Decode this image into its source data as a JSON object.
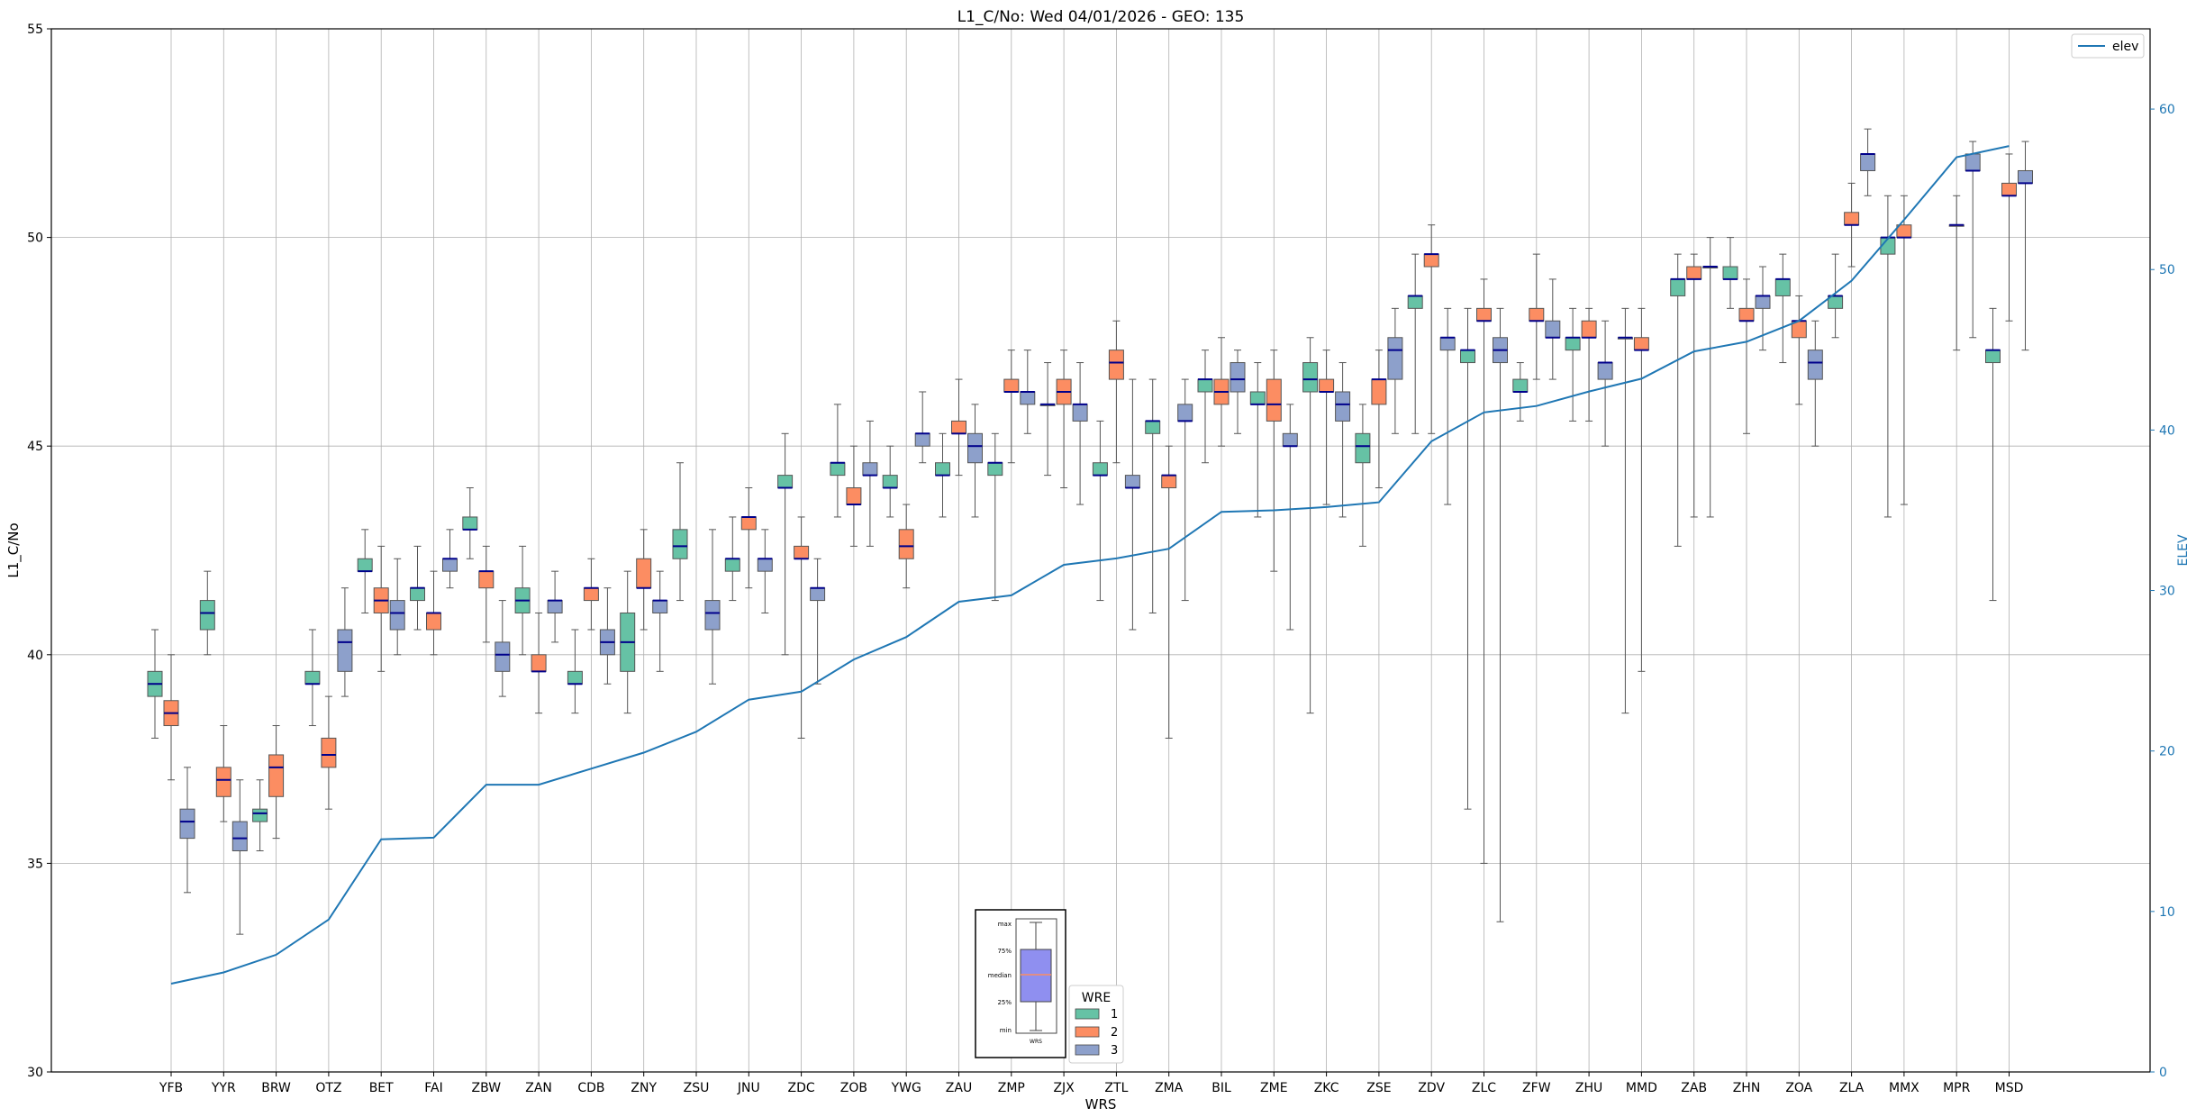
{
  "chart_data": {
    "type": "box",
    "title": "L1_C/No: Wed 04/01/2026 - GEO: 135",
    "xlabel": "WRS",
    "ylabel": "L1_C/No",
    "y2label": "ELEV",
    "ylim": [
      30,
      55
    ],
    "y2lim": [
      0,
      65
    ],
    "yticks": [
      30,
      35,
      40,
      45,
      50,
      55
    ],
    "y2ticks": [
      0,
      10,
      20,
      30,
      40,
      50,
      60
    ],
    "grid": true,
    "categories": [
      "YFB",
      "YYR",
      "BRW",
      "OTZ",
      "BET",
      "FAI",
      "ZBW",
      "ZAN",
      "CDB",
      "ZNY",
      "ZSU",
      "JNU",
      "ZDC",
      "ZOB",
      "YWG",
      "ZAU",
      "ZMP",
      "ZJX",
      "ZTL",
      "ZMA",
      "BIL",
      "ZME",
      "ZKC",
      "ZSE",
      "ZDV",
      "ZLC",
      "ZFW",
      "ZHU",
      "MMD",
      "ZAB",
      "ZHN",
      "ZOA",
      "ZLA",
      "MMX",
      "MPR",
      "MSD"
    ],
    "wre_colors": {
      "1": "#66c2a5",
      "2": "#fc8d62",
      "3": "#8da0cb"
    },
    "line_series": {
      "name": "elev",
      "color": "#1f77b4",
      "values": [
        5.5,
        6.2,
        7.3,
        9.5,
        14.5,
        14.6,
        17.9,
        17.9,
        18.9,
        19.9,
        21.2,
        23.2,
        23.7,
        25.7,
        27.1,
        29.3,
        29.7,
        31.6,
        32.0,
        32.6,
        34.9,
        35.0,
        35.2,
        35.5,
        39.3,
        41.1,
        41.5,
        42.4,
        43.2,
        44.9,
        45.5,
        46.8,
        49.3,
        53.1,
        57.0,
        57.7
      ]
    },
    "legend": {
      "title": "WRE",
      "entries": [
        "1",
        "2",
        "3"
      ],
      "line_label": "elev",
      "line_legend_position": "top-right",
      "wre_legend_position": "lower-center"
    },
    "inset": {
      "labels": [
        "max",
        "75%",
        "median",
        "25%",
        "min"
      ],
      "xlabel": "WRS"
    },
    "boxes": [
      {
        "cat": "YFB",
        "wre": 1,
        "min": 38.0,
        "q1": 39.0,
        "med": 39.3,
        "q3": 39.6,
        "max": 40.6
      },
      {
        "cat": "YFB",
        "wre": 2,
        "min": 37.0,
        "q1": 38.3,
        "med": 38.6,
        "q3": 38.9,
        "max": 40.0
      },
      {
        "cat": "YFB",
        "wre": 3,
        "min": 34.3,
        "q1": 35.6,
        "med": 36.0,
        "q3": 36.3,
        "max": 37.3
      },
      {
        "cat": "YYR",
        "wre": 1,
        "min": 40.0,
        "q1": 40.6,
        "med": 41.0,
        "q3": 41.3,
        "max": 42.0
      },
      {
        "cat": "YYR",
        "wre": 2,
        "min": 36.0,
        "q1": 36.6,
        "med": 37.0,
        "q3": 37.3,
        "max": 38.3
      },
      {
        "cat": "YYR",
        "wre": 3,
        "min": 33.3,
        "q1": 35.3,
        "med": 35.6,
        "q3": 36.0,
        "max": 37.0
      },
      {
        "cat": "BRW",
        "wre": 1,
        "min": 35.3,
        "q1": 36.0,
        "med": 36.2,
        "q3": 36.3,
        "max": 37.0
      },
      {
        "cat": "BRW",
        "wre": 2,
        "min": 35.6,
        "q1": 36.6,
        "med": 37.3,
        "q3": 37.6,
        "max": 38.3
      },
      {
        "cat": "OTZ",
        "wre": 1,
        "min": 38.3,
        "q1": 39.3,
        "med": 39.3,
        "q3": 39.6,
        "max": 40.6
      },
      {
        "cat": "OTZ",
        "wre": 2,
        "min": 36.3,
        "q1": 37.3,
        "med": 37.6,
        "q3": 38.0,
        "max": 39.0
      },
      {
        "cat": "OTZ",
        "wre": 3,
        "min": 39.0,
        "q1": 39.6,
        "med": 40.3,
        "q3": 40.6,
        "max": 41.6
      },
      {
        "cat": "BET",
        "wre": 1,
        "min": 41.0,
        "q1": 42.0,
        "med": 42.0,
        "q3": 42.3,
        "max": 43.0
      },
      {
        "cat": "BET",
        "wre": 2,
        "min": 39.6,
        "q1": 41.0,
        "med": 41.3,
        "q3": 41.6,
        "max": 42.6
      },
      {
        "cat": "BET",
        "wre": 3,
        "min": 40.0,
        "q1": 40.6,
        "med": 41.0,
        "q3": 41.3,
        "max": 42.3
      },
      {
        "cat": "FAI",
        "wre": 1,
        "min": 40.6,
        "q1": 41.3,
        "med": 41.6,
        "q3": 41.6,
        "max": 42.6
      },
      {
        "cat": "FAI",
        "wre": 2,
        "min": 40.0,
        "q1": 40.6,
        "med": 41.0,
        "q3": 41.0,
        "max": 42.0
      },
      {
        "cat": "FAI",
        "wre": 3,
        "min": 41.6,
        "q1": 42.0,
        "med": 42.3,
        "q3": 42.3,
        "max": 43.0
      },
      {
        "cat": "ZBW",
        "wre": 1,
        "min": 42.3,
        "q1": 43.0,
        "med": 43.0,
        "q3": 43.3,
        "max": 44.0
      },
      {
        "cat": "ZBW",
        "wre": 2,
        "min": 40.3,
        "q1": 41.6,
        "med": 42.0,
        "q3": 42.0,
        "max": 42.6
      },
      {
        "cat": "ZBW",
        "wre": 3,
        "min": 39.0,
        "q1": 39.6,
        "med": 40.0,
        "q3": 40.3,
        "max": 41.3
      },
      {
        "cat": "ZAN",
        "wre": 1,
        "min": 40.0,
        "q1": 41.0,
        "med": 41.3,
        "q3": 41.6,
        "max": 42.6
      },
      {
        "cat": "ZAN",
        "wre": 2,
        "min": 38.6,
        "q1": 39.6,
        "med": 39.6,
        "q3": 40.0,
        "max": 41.0
      },
      {
        "cat": "ZAN",
        "wre": 3,
        "min": 40.3,
        "q1": 41.0,
        "med": 41.3,
        "q3": 41.3,
        "max": 42.0
      },
      {
        "cat": "CDB",
        "wre": 1,
        "min": 38.6,
        "q1": 39.3,
        "med": 39.3,
        "q3": 39.6,
        "max": 40.6
      },
      {
        "cat": "CDB",
        "wre": 2,
        "min": 40.6,
        "q1": 41.3,
        "med": 41.6,
        "q3": 41.6,
        "max": 42.3
      },
      {
        "cat": "CDB",
        "wre": 3,
        "min": 39.3,
        "q1": 40.0,
        "med": 40.3,
        "q3": 40.6,
        "max": 41.6
      },
      {
        "cat": "ZNY",
        "wre": 1,
        "min": 38.6,
        "q1": 39.6,
        "med": 40.3,
        "q3": 41.0,
        "max": 42.0
      },
      {
        "cat": "ZNY",
        "wre": 2,
        "min": 40.6,
        "q1": 41.6,
        "med": 41.6,
        "q3": 42.3,
        "max": 43.0
      },
      {
        "cat": "ZNY",
        "wre": 3,
        "min": 39.6,
        "q1": 41.0,
        "med": 41.3,
        "q3": 41.3,
        "max": 42.0
      },
      {
        "cat": "ZSU",
        "wre": 1,
        "min": 41.3,
        "q1": 42.3,
        "med": 42.6,
        "q3": 43.0,
        "max": 44.6
      },
      {
        "cat": "ZSU",
        "wre": 3,
        "min": 39.3,
        "q1": 40.6,
        "med": 41.0,
        "q3": 41.3,
        "max": 43.0
      },
      {
        "cat": "JNU",
        "wre": 1,
        "min": 41.3,
        "q1": 42.0,
        "med": 42.3,
        "q3": 42.3,
        "max": 43.3
      },
      {
        "cat": "JNU",
        "wre": 2,
        "min": 41.6,
        "q1": 43.0,
        "med": 43.3,
        "q3": 43.3,
        "max": 44.0
      },
      {
        "cat": "JNU",
        "wre": 3,
        "min": 41.0,
        "q1": 42.0,
        "med": 42.3,
        "q3": 42.3,
        "max": 43.0
      },
      {
        "cat": "ZDC",
        "wre": 1,
        "min": 40.0,
        "q1": 44.0,
        "med": 44.0,
        "q3": 44.3,
        "max": 45.3
      },
      {
        "cat": "ZDC",
        "wre": 2,
        "min": 38.0,
        "q1": 42.3,
        "med": 42.3,
        "q3": 42.6,
        "max": 43.3
      },
      {
        "cat": "ZDC",
        "wre": 3,
        "min": 39.3,
        "q1": 41.3,
        "med": 41.6,
        "q3": 41.6,
        "max": 42.3
      },
      {
        "cat": "ZOB",
        "wre": 1,
        "min": 43.3,
        "q1": 44.3,
        "med": 44.6,
        "q3": 44.6,
        "max": 46.0
      },
      {
        "cat": "ZOB",
        "wre": 2,
        "min": 42.6,
        "q1": 43.6,
        "med": 43.6,
        "q3": 44.0,
        "max": 45.0
      },
      {
        "cat": "ZOB",
        "wre": 3,
        "min": 42.6,
        "q1": 44.3,
        "med": 44.3,
        "q3": 44.6,
        "max": 45.6
      },
      {
        "cat": "YWG",
        "wre": 1,
        "min": 43.3,
        "q1": 44.0,
        "med": 44.0,
        "q3": 44.3,
        "max": 45.0
      },
      {
        "cat": "YWG",
        "wre": 2,
        "min": 41.6,
        "q1": 42.3,
        "med": 42.6,
        "q3": 43.0,
        "max": 43.6
      },
      {
        "cat": "YWG",
        "wre": 3,
        "min": 44.6,
        "q1": 45.0,
        "med": 45.3,
        "q3": 45.3,
        "max": 46.3
      },
      {
        "cat": "ZAU",
        "wre": 1,
        "min": 43.3,
        "q1": 44.3,
        "med": 44.3,
        "q3": 44.6,
        "max": 45.3
      },
      {
        "cat": "ZAU",
        "wre": 2,
        "min": 44.3,
        "q1": 45.3,
        "med": 45.3,
        "q3": 45.6,
        "max": 46.6
      },
      {
        "cat": "ZAU",
        "wre": 3,
        "min": 43.3,
        "q1": 44.6,
        "med": 45.0,
        "q3": 45.3,
        "max": 46.0
      },
      {
        "cat": "ZMP",
        "wre": 1,
        "min": 41.3,
        "q1": 44.3,
        "med": 44.6,
        "q3": 44.6,
        "max": 45.3
      },
      {
        "cat": "ZMP",
        "wre": 2,
        "min": 44.6,
        "q1": 46.3,
        "med": 46.3,
        "q3": 46.6,
        "max": 47.3
      },
      {
        "cat": "ZMP",
        "wre": 3,
        "min": 45.3,
        "q1": 46.0,
        "med": 46.3,
        "q3": 46.3,
        "max": 47.3
      },
      {
        "cat": "ZJX",
        "wre": 1,
        "min": 44.3,
        "q1": 46.0,
        "med": 46.0,
        "q3": 46.0,
        "max": 47.0
      },
      {
        "cat": "ZJX",
        "wre": 2,
        "min": 44.0,
        "q1": 46.0,
        "med": 46.3,
        "q3": 46.6,
        "max": 47.3
      },
      {
        "cat": "ZJX",
        "wre": 3,
        "min": 43.6,
        "q1": 45.6,
        "med": 46.0,
        "q3": 46.0,
        "max": 47.0
      },
      {
        "cat": "ZTL",
        "wre": 1,
        "min": 41.3,
        "q1": 44.3,
        "med": 44.3,
        "q3": 44.6,
        "max": 45.6
      },
      {
        "cat": "ZTL",
        "wre": 2,
        "min": 44.6,
        "q1": 46.6,
        "med": 47.0,
        "q3": 47.3,
        "max": 48.0
      },
      {
        "cat": "ZTL",
        "wre": 3,
        "min": 40.6,
        "q1": 44.0,
        "med": 44.0,
        "q3": 44.3,
        "max": 46.6
      },
      {
        "cat": "ZMA",
        "wre": 1,
        "min": 41.0,
        "q1": 45.3,
        "med": 45.6,
        "q3": 45.6,
        "max": 46.6
      },
      {
        "cat": "ZMA",
        "wre": 2,
        "min": 38.0,
        "q1": 44.0,
        "med": 44.3,
        "q3": 44.3,
        "max": 45.0
      },
      {
        "cat": "ZMA",
        "wre": 3,
        "min": 41.3,
        "q1": 45.6,
        "med": 45.6,
        "q3": 46.0,
        "max": 46.6
      },
      {
        "cat": "BIL",
        "wre": 1,
        "min": 44.6,
        "q1": 46.3,
        "med": 46.6,
        "q3": 46.6,
        "max": 47.3
      },
      {
        "cat": "BIL",
        "wre": 2,
        "min": 45.0,
        "q1": 46.0,
        "med": 46.3,
        "q3": 46.6,
        "max": 47.6
      },
      {
        "cat": "BIL",
        "wre": 3,
        "min": 45.3,
        "q1": 46.3,
        "med": 46.6,
        "q3": 47.0,
        "max": 47.3
      },
      {
        "cat": "ZME",
        "wre": 1,
        "min": 43.3,
        "q1": 46.0,
        "med": 46.0,
        "q3": 46.3,
        "max": 47.0
      },
      {
        "cat": "ZME",
        "wre": 2,
        "min": 42.0,
        "q1": 45.6,
        "med": 46.0,
        "q3": 46.6,
        "max": 47.3
      },
      {
        "cat": "ZME",
        "wre": 3,
        "min": 40.6,
        "q1": 45.0,
        "med": 45.0,
        "q3": 45.3,
        "max": 46.0
      },
      {
        "cat": "ZKC",
        "wre": 1,
        "min": 38.6,
        "q1": 46.3,
        "med": 46.6,
        "q3": 47.0,
        "max": 47.6
      },
      {
        "cat": "ZKC",
        "wre": 2,
        "min": 43.6,
        "q1": 46.3,
        "med": 46.3,
        "q3": 46.6,
        "max": 47.3
      },
      {
        "cat": "ZKC",
        "wre": 3,
        "min": 43.3,
        "q1": 45.6,
        "med": 46.0,
        "q3": 46.3,
        "max": 47.0
      },
      {
        "cat": "ZSE",
        "wre": 1,
        "min": 42.6,
        "q1": 44.6,
        "med": 45.0,
        "q3": 45.3,
        "max": 46.0
      },
      {
        "cat": "ZSE",
        "wre": 2,
        "min": 44.0,
        "q1": 46.0,
        "med": 46.6,
        "q3": 46.6,
        "max": 47.3
      },
      {
        "cat": "ZSE",
        "wre": 3,
        "min": 45.3,
        "q1": 46.6,
        "med": 47.3,
        "q3": 47.6,
        "max": 48.3
      },
      {
        "cat": "ZDV",
        "wre": 1,
        "min": 45.3,
        "q1": 48.3,
        "med": 48.6,
        "q3": 48.6,
        "max": 49.6
      },
      {
        "cat": "ZDV",
        "wre": 2,
        "min": 45.3,
        "q1": 49.3,
        "med": 49.6,
        "q3": 49.6,
        "max": 50.3
      },
      {
        "cat": "ZDV",
        "wre": 3,
        "min": 43.6,
        "q1": 47.3,
        "med": 47.6,
        "q3": 47.6,
        "max": 48.3
      },
      {
        "cat": "ZLC",
        "wre": 1,
        "min": 36.3,
        "q1": 47.0,
        "med": 47.3,
        "q3": 47.3,
        "max": 48.3
      },
      {
        "cat": "ZLC",
        "wre": 2,
        "min": 35.0,
        "q1": 48.0,
        "med": 48.0,
        "q3": 48.3,
        "max": 49.0
      },
      {
        "cat": "ZLC",
        "wre": 3,
        "min": 33.6,
        "q1": 47.0,
        "med": 47.3,
        "q3": 47.6,
        "max": 48.3
      },
      {
        "cat": "ZFW",
        "wre": 1,
        "min": 45.6,
        "q1": 46.3,
        "med": 46.3,
        "q3": 46.6,
        "max": 47.0
      },
      {
        "cat": "ZFW",
        "wre": 2,
        "min": 46.6,
        "q1": 48.0,
        "med": 48.0,
        "q3": 48.3,
        "max": 49.6
      },
      {
        "cat": "ZFW",
        "wre": 3,
        "min": 46.6,
        "q1": 47.6,
        "med": 47.6,
        "q3": 48.0,
        "max": 49.0
      },
      {
        "cat": "ZHU",
        "wre": 1,
        "min": 45.6,
        "q1": 47.3,
        "med": 47.6,
        "q3": 47.6,
        "max": 48.3
      },
      {
        "cat": "ZHU",
        "wre": 2,
        "min": 45.6,
        "q1": 47.6,
        "med": 47.6,
        "q3": 48.0,
        "max": 48.3
      },
      {
        "cat": "ZHU",
        "wre": 3,
        "min": 45.0,
        "q1": 46.6,
        "med": 47.0,
        "q3": 47.0,
        "max": 48.0
      },
      {
        "cat": "MMD",
        "wre": 1,
        "min": 38.6,
        "q1": 47.6,
        "med": 47.6,
        "q3": 47.6,
        "max": 48.3
      },
      {
        "cat": "MMD",
        "wre": 2,
        "min": 39.6,
        "q1": 47.3,
        "med": 47.3,
        "q3": 47.6,
        "max": 48.3
      },
      {
        "cat": "ZAB",
        "wre": 1,
        "min": 42.6,
        "q1": 48.6,
        "med": 49.0,
        "q3": 49.0,
        "max": 49.6
      },
      {
        "cat": "ZAB",
        "wre": 2,
        "min": 43.3,
        "q1": 49.0,
        "med": 49.0,
        "q3": 49.3,
        "max": 49.6
      },
      {
        "cat": "ZAB",
        "wre": 3,
        "min": 43.3,
        "q1": 49.3,
        "med": 49.3,
        "q3": 49.3,
        "max": 50.0
      },
      {
        "cat": "ZHN",
        "wre": 1,
        "min": 48.3,
        "q1": 49.0,
        "med": 49.0,
        "q3": 49.3,
        "max": 50.0
      },
      {
        "cat": "ZHN",
        "wre": 2,
        "min": 45.3,
        "q1": 48.0,
        "med": 48.0,
        "q3": 48.3,
        "max": 49.0
      },
      {
        "cat": "ZHN",
        "wre": 3,
        "min": 47.3,
        "q1": 48.3,
        "med": 48.6,
        "q3": 48.6,
        "max": 49.3
      },
      {
        "cat": "ZOA",
        "wre": 1,
        "min": 47.0,
        "q1": 48.6,
        "med": 49.0,
        "q3": 49.0,
        "max": 49.6
      },
      {
        "cat": "ZOA",
        "wre": 2,
        "min": 46.0,
        "q1": 47.6,
        "med": 48.0,
        "q3": 48.0,
        "max": 48.6
      },
      {
        "cat": "ZOA",
        "wre": 3,
        "min": 45.0,
        "q1": 46.6,
        "med": 47.0,
        "q3": 47.3,
        "max": 48.0
      },
      {
        "cat": "ZLA",
        "wre": 1,
        "min": 47.6,
        "q1": 48.3,
        "med": 48.6,
        "q3": 48.6,
        "max": 49.6
      },
      {
        "cat": "ZLA",
        "wre": 2,
        "min": 49.3,
        "q1": 50.3,
        "med": 50.3,
        "q3": 50.6,
        "max": 51.3
      },
      {
        "cat": "ZLA",
        "wre": 3,
        "min": 51.0,
        "q1": 51.6,
        "med": 52.0,
        "q3": 52.0,
        "max": 52.6
      },
      {
        "cat": "MMX",
        "wre": 1,
        "min": 43.3,
        "q1": 49.6,
        "med": 50.0,
        "q3": 50.0,
        "max": 51.0
      },
      {
        "cat": "MMX",
        "wre": 2,
        "min": 43.6,
        "q1": 50.0,
        "med": 50.0,
        "q3": 50.3,
        "max": 51.0
      },
      {
        "cat": "MPR",
        "wre": 2,
        "min": 47.3,
        "q1": 50.3,
        "med": 50.3,
        "q3": 50.3,
        "max": 51.0
      },
      {
        "cat": "MPR",
        "wre": 3,
        "min": 47.6,
        "q1": 51.6,
        "med": 51.6,
        "q3": 52.0,
        "max": 52.3
      },
      {
        "cat": "MSD",
        "wre": 1,
        "min": 41.3,
        "q1": 47.0,
        "med": 47.3,
        "q3": 47.3,
        "max": 48.3
      },
      {
        "cat": "MSD",
        "wre": 2,
        "min": 48.0,
        "q1": 51.0,
        "med": 51.0,
        "q3": 51.3,
        "max": 52.0
      },
      {
        "cat": "MSD",
        "wre": 3,
        "min": 47.3,
        "q1": 51.3,
        "med": 51.3,
        "q3": 51.6,
        "max": 52.3
      }
    ]
  }
}
